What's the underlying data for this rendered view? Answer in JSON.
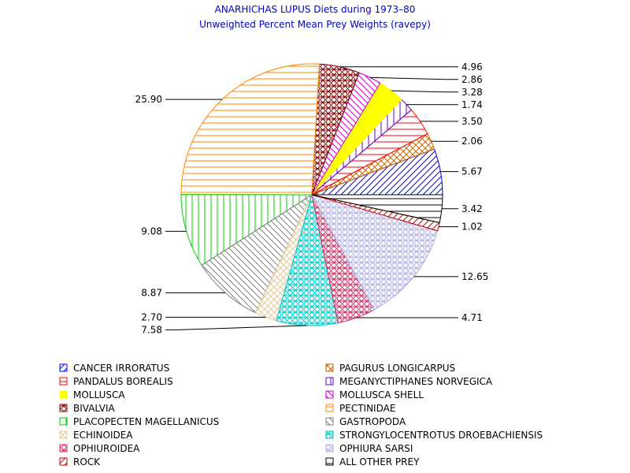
{
  "chart_data": {
    "type": "pie",
    "title": "ANARHICHAS LUPUS Diets during 1973–80",
    "subtitle": "Unweighted Percent Mean Prey Weights (ravepy)",
    "slices": [
      {
        "category": "CANCER IRRORATUS",
        "value": 5.67,
        "label": "5.67",
        "color": "#0000ff",
        "pattern": "fdiag",
        "dir": "right"
      },
      {
        "category": "PAGURUS LONGICARPUS",
        "value": 2.06,
        "label": "2.06",
        "color": "#cc6600",
        "pattern": "cross",
        "dir": "right"
      },
      {
        "category": "PANDALUS BOREALIS",
        "value": 3.5,
        "label": "3.50",
        "color": "#ff0000",
        "pattern": "horiz",
        "dir": "right"
      },
      {
        "category": "MEGANYCTIPHANES NORVEGICA",
        "value": 1.74,
        "label": "1.74",
        "color": "#6600cc",
        "pattern": "vert",
        "dir": "right"
      },
      {
        "category": "MOLLUSCA",
        "value": 3.28,
        "label": "3.28",
        "color": "#ffff00",
        "pattern": "solid",
        "dir": "right"
      },
      {
        "category": "MOLLUSCA SHELL",
        "value": 2.86,
        "label": "2.86",
        "color": "#cc00cc",
        "pattern": "bdiag",
        "dir": "right"
      },
      {
        "category": "BIVALVIA",
        "value": 4.96,
        "label": "4.96",
        "color": "#800000",
        "pattern": "xcross",
        "dir": "right"
      },
      {
        "category": "PECTINIDAE",
        "value": 25.9,
        "label": "25.90",
        "color": "#ff8800",
        "pattern": "horiz",
        "dir": "left"
      },
      {
        "category": "PLACOPECTEN MAGELLANICUS",
        "value": 9.08,
        "label": "9.08",
        "color": "#00cc00",
        "pattern": "vert",
        "dir": "left"
      },
      {
        "category": "GASTROPODA",
        "value": 8.87,
        "label": "8.87",
        "color": "#808080",
        "pattern": "bdiag",
        "dir": "left"
      },
      {
        "category": "ECHINOIDEA",
        "value": 2.7,
        "label": "2.70",
        "color": "#e6c896",
        "pattern": "cross",
        "dir": "left"
      },
      {
        "category": "STRONGYLOCENTROTUS DROEBACHIENSIS",
        "value": 7.58,
        "label": "7.58",
        "color": "#00cccc",
        "pattern": "xcross",
        "dir": "left"
      },
      {
        "category": "OPHIUROIDEA",
        "value": 4.71,
        "label": "4.71",
        "color": "#cc3366",
        "pattern": "xcross",
        "dir": "right"
      },
      {
        "category": "OPHIURA SARSI",
        "value": 12.65,
        "label": "12.65",
        "color": "#b4b4e6",
        "pattern": "xcross",
        "dir": "right"
      },
      {
        "category": "ROCK",
        "value": 1.02,
        "label": "1.02",
        "color": "#cc0000",
        "pattern": "fdiag",
        "dir": "right"
      },
      {
        "category": "ALL OTHER PREY",
        "value": 3.42,
        "label": "3.42",
        "color": "#000000",
        "pattern": "horiz",
        "dir": "right"
      }
    ],
    "legend": [
      [
        "CANCER IRRORATUS",
        "PAGURUS LONGICARPUS"
      ],
      [
        "PANDALUS BOREALIS",
        "MEGANYCTIPHANES NORVEGICA"
      ],
      [
        "MOLLUSCA",
        "MOLLUSCA SHELL"
      ],
      [
        "BIVALVIA",
        "PECTINIDAE"
      ],
      [
        "PLACOPECTEN MAGELLANICUS",
        "GASTROPODA"
      ],
      [
        "ECHINOIDEA",
        "STRONGYLOCENTROTUS DROEBACHIENSIS"
      ],
      [
        "OPHIUROIDEA",
        "OPHIURA SARSI"
      ],
      [
        "ROCK",
        "ALL OTHER PREY"
      ]
    ],
    "legend_placement": "bottom"
  }
}
